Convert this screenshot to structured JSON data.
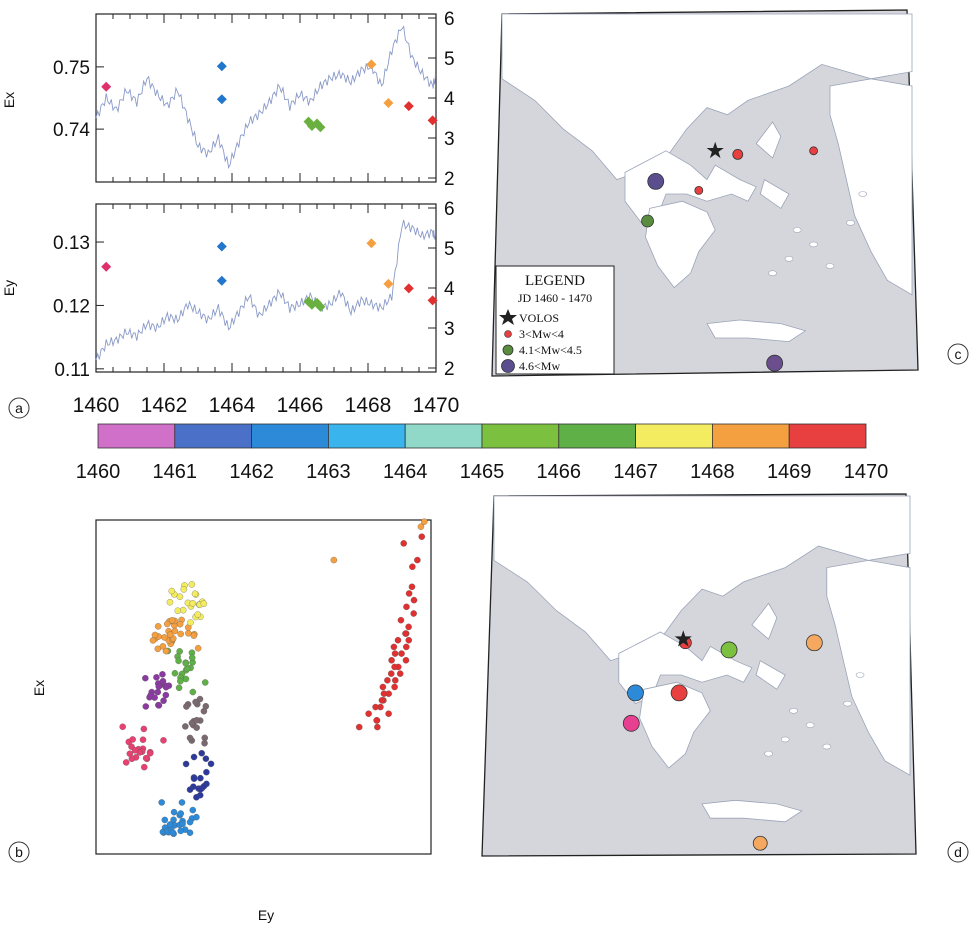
{
  "panel_labels": {
    "a": "a",
    "b": "b",
    "c": "c",
    "d": "d"
  },
  "chart_data": [
    {
      "id": "ex-timeseries",
      "type": "scatter",
      "ylabel": "Ex",
      "y_ticks": [
        "0.75",
        "0.74"
      ],
      "y_tick_values": [
        0.75,
        0.74
      ],
      "ylim": [
        0.7315,
        0.7585
      ],
      "right_ticks": [
        "6",
        "5",
        "4",
        "3",
        "2"
      ],
      "right_tick_values": [
        6,
        5,
        4,
        3,
        2
      ],
      "right_lim": [
        2,
        6
      ],
      "xlim": [
        1460,
        1470
      ],
      "series": [
        {
          "kind": "points",
          "values": [
            {
              "x": 1460.3,
              "y": 0.7468,
              "c": "#e0306a"
            },
            {
              "x": 1463.7,
              "y": 0.7501,
              "c": "#2277cc"
            },
            {
              "x": 1463.7,
              "y": 0.7448,
              "c": "#2277cc"
            },
            {
              "x": 1466.25,
              "y": 0.7412,
              "c": "#6ab040"
            },
            {
              "x": 1466.35,
              "y": 0.7405,
              "c": "#6ab040"
            },
            {
              "x": 1466.5,
              "y": 0.7409,
              "c": "#6ab040"
            },
            {
              "x": 1466.6,
              "y": 0.7403,
              "c": "#6ab040"
            },
            {
              "x": 1468.1,
              "y": 0.7504,
              "c": "#f5a040"
            },
            {
              "x": 1468.6,
              "y": 0.7442,
              "c": "#f5a040"
            },
            {
              "x": 1469.2,
              "y": 0.7437,
              "c": "#e03030"
            },
            {
              "x": 1469.9,
              "y": 0.7414,
              "c": "#e03030"
            }
          ]
        },
        {
          "kind": "line",
          "axis": "right",
          "x": [
            1460,
            1460.3,
            1460.6,
            1460.9,
            1461.2,
            1461.5,
            1461.8,
            1462.1,
            1462.4,
            1462.7,
            1463,
            1463.3,
            1463.6,
            1463.9,
            1464.2,
            1464.5,
            1464.8,
            1465.1,
            1465.4,
            1465.7,
            1466,
            1466.3,
            1466.6,
            1466.9,
            1467.2,
            1467.5,
            1467.8,
            1468.1,
            1468.4,
            1468.7,
            1469,
            1469.3,
            1469.6,
            1469.9,
            1470
          ],
          "y": [
            3.5,
            4.0,
            3.7,
            4.2,
            3.9,
            4.5,
            4.1,
            3.8,
            4.2,
            3.5,
            2.8,
            2.6,
            3.0,
            2.3,
            2.9,
            3.4,
            3.6,
            3.9,
            4.3,
            3.8,
            4.1,
            3.9,
            4.3,
            4.5,
            4.6,
            4.4,
            4.7,
            4.8,
            4.3,
            5.2,
            5.8,
            5.0,
            4.6,
            4.3,
            4.5
          ]
        }
      ]
    },
    {
      "id": "ey-timeseries",
      "type": "scatter",
      "ylabel": "Ey",
      "y_ticks": [
        "0.13",
        "0.12",
        "0.11"
      ],
      "y_tick_values": [
        0.13,
        0.12,
        0.11
      ],
      "ylim": [
        0.1095,
        0.136
      ],
      "right_ticks": [
        "6",
        "5",
        "4",
        "3",
        "2"
      ],
      "right_tick_values": [
        6,
        5,
        4,
        3,
        2
      ],
      "right_lim": [
        2,
        6
      ],
      "x_ticks": [
        "1460",
        "1462",
        "1464",
        "1466",
        "1468",
        "1470"
      ],
      "x_tick_values": [
        1460,
        1462,
        1464,
        1466,
        1468,
        1470
      ],
      "xlim": [
        1460,
        1470
      ],
      "series": [
        {
          "kind": "points",
          "values": [
            {
              "x": 1460.3,
              "y": 0.1261,
              "c": "#e0306a"
            },
            {
              "x": 1463.7,
              "y": 0.1293,
              "c": "#2277cc"
            },
            {
              "x": 1463.7,
              "y": 0.1239,
              "c": "#2277cc"
            },
            {
              "x": 1466.25,
              "y": 0.1206,
              "c": "#6ab040"
            },
            {
              "x": 1466.35,
              "y": 0.1201,
              "c": "#6ab040"
            },
            {
              "x": 1466.5,
              "y": 0.1204,
              "c": "#6ab040"
            },
            {
              "x": 1466.6,
              "y": 0.1198,
              "c": "#6ab040"
            },
            {
              "x": 1468.1,
              "y": 0.1298,
              "c": "#f5a040"
            },
            {
              "x": 1468.6,
              "y": 0.1234,
              "c": "#f5a040"
            },
            {
              "x": 1469.2,
              "y": 0.1227,
              "c": "#e03030"
            },
            {
              "x": 1469.9,
              "y": 0.1208,
              "c": "#e03030"
            }
          ]
        },
        {
          "kind": "line",
          "axis": "right",
          "x": [
            1460,
            1460.3,
            1460.6,
            1460.9,
            1461.2,
            1461.5,
            1461.8,
            1462.1,
            1462.4,
            1462.7,
            1463,
            1463.3,
            1463.6,
            1463.9,
            1464.2,
            1464.5,
            1464.8,
            1465.1,
            1465.4,
            1465.7,
            1466,
            1466.3,
            1466.6,
            1466.9,
            1467.2,
            1467.5,
            1467.8,
            1468.1,
            1468.4,
            1468.7,
            1469,
            1469.3,
            1469.6,
            1469.9,
            1470
          ],
          "y": [
            2.2,
            2.6,
            2.7,
            2.9,
            2.8,
            3.1,
            3.0,
            3.3,
            3.2,
            3.6,
            3.4,
            3.2,
            3.5,
            3.0,
            3.4,
            3.8,
            3.3,
            3.6,
            3.9,
            3.5,
            3.6,
            3.8,
            3.5,
            3.6,
            3.9,
            3.4,
            3.7,
            3.6,
            3.5,
            3.8,
            5.6,
            5.5,
            5.3,
            5.4,
            5.2
          ]
        }
      ]
    },
    {
      "id": "jd-colorbar",
      "type": "heatmap",
      "tick_labels": [
        "1460",
        "1461",
        "1462",
        "1463",
        "1464",
        "1465",
        "1466",
        "1467",
        "1468",
        "1469",
        "1470"
      ],
      "colors": [
        "#d070c8",
        "#4a70c8",
        "#2d8ad8",
        "#3ab4ec",
        "#90d8c8",
        "#7cc040",
        "#60b048",
        "#f4ec60",
        "#f4a040",
        "#e84040"
      ]
    },
    {
      "id": "ex-vs-ey",
      "type": "scatter",
      "xlabel": "Ey",
      "ylabel": "Ex",
      "xlim": [
        0,
        100
      ],
      "ylim": [
        0,
        100
      ],
      "clusters": [
        {
          "c": "#e84070",
          "cx": 14,
          "cy": 31,
          "sx": 6,
          "sy": 6,
          "n": 22
        },
        {
          "c": "#8a3aa0",
          "cx": 19,
          "cy": 50,
          "sx": 4,
          "sy": 5,
          "n": 20
        },
        {
          "c": "#7a6a70",
          "cx": 30,
          "cy": 40,
          "sx": 4,
          "sy": 7,
          "n": 18
        },
        {
          "c": "#2d3a9c",
          "cx": 30,
          "cy": 24,
          "sx": 4,
          "sy": 7,
          "n": 18
        },
        {
          "c": "#2d8ad8",
          "cx": 25,
          "cy": 10,
          "sx": 5,
          "sy": 5,
          "n": 28
        },
        {
          "c": "#60b048",
          "cx": 27,
          "cy": 56,
          "sx": 5,
          "sy": 6,
          "n": 20
        },
        {
          "c": "#f4a040",
          "cx": 23,
          "cy": 66,
          "sx": 6,
          "sy": 5,
          "n": 30
        },
        {
          "c": "#f4ec60",
          "cx": 27,
          "cy": 76,
          "sx": 6,
          "sy": 6,
          "n": 22
        }
      ],
      "trail": {
        "c": "#e03030",
        "x": [
          83,
          85,
          86,
          87,
          88,
          89,
          90,
          90,
          91,
          92,
          92,
          93,
          93,
          94,
          94,
          95,
          95,
          95,
          96,
          96
        ],
        "y": [
          40,
          44,
          42,
          46,
          48,
          50,
          52,
          54,
          56,
          58,
          60,
          62,
          64,
          66,
          68,
          72,
          76,
          80,
          88,
          95
        ]
      },
      "extra_points": [
        {
          "x": 71,
          "y": 88,
          "c": "#f4a040"
        },
        {
          "x": 97,
          "y": 98,
          "c": "#f4a040"
        },
        {
          "x": 98,
          "y": 99.5,
          "c": "#f4a040"
        },
        {
          "x": 84,
          "y": 38,
          "c": "#e03030"
        }
      ]
    }
  ],
  "legend_c": {
    "title": "LEGEND",
    "subtitle": "JD 1460 - 1470",
    "items": [
      {
        "label": "VOLOS",
        "symbol": "star"
      },
      {
        "label": "3<Mw<4",
        "symbol": "small-red"
      },
      {
        "label": "4.1<Mw<4.5",
        "symbol": "mid-green"
      },
      {
        "label": "4.6<Mw",
        "symbol": "large-purple"
      }
    ]
  },
  "map_c": {
    "events": [
      {
        "mx": 0.375,
        "my": 0.465,
        "c": "#5a4e8e",
        "r": 8
      },
      {
        "mx": 0.355,
        "my": 0.575,
        "c": "#5a8c40",
        "r": 6
      },
      {
        "mx": 0.48,
        "my": 0.49,
        "c": "#e84040",
        "r": 4
      },
      {
        "mx": 0.575,
        "my": 0.39,
        "c": "#e84040",
        "r": 5
      },
      {
        "mx": 0.76,
        "my": 0.38,
        "c": "#e84040",
        "r": 4
      },
      {
        "mx": 0.665,
        "my": 0.97,
        "c": "#6a4e8e",
        "r": 8
      }
    ],
    "star": {
      "mx": 0.52,
      "my": 0.38
    }
  },
  "map_d": {
    "events": [
      {
        "mx": 0.34,
        "my": 0.55,
        "c": "#2d8ad8",
        "r": 8
      },
      {
        "mx": 0.33,
        "my": 0.635,
        "c": "#e84090",
        "r": 8
      },
      {
        "mx": 0.445,
        "my": 0.55,
        "c": "#e84040",
        "r": 8
      },
      {
        "mx": 0.565,
        "my": 0.43,
        "c": "#7cc040",
        "r": 8
      },
      {
        "mx": 0.77,
        "my": 0.41,
        "c": "#f4a860",
        "r": 8
      },
      {
        "mx": 0.46,
        "my": 0.41,
        "c": "#e84040",
        "r": 6
      },
      {
        "mx": 0.64,
        "my": 0.97,
        "c": "#f4a860",
        "r": 7
      }
    ],
    "star": {
      "mx": 0.455,
      "my": 0.4
    }
  },
  "colors": {
    "sea": "#d4d6dc",
    "land": "#ffffff",
    "line": "#7a8aa8"
  }
}
